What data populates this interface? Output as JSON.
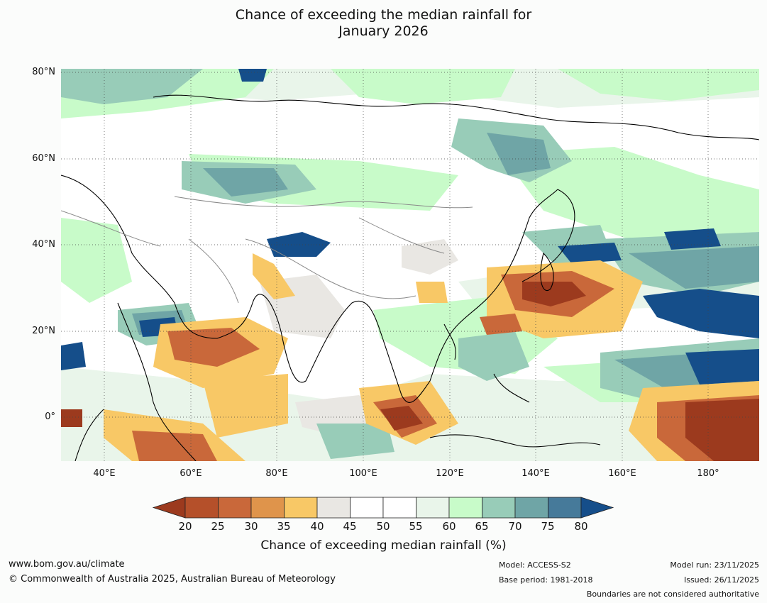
{
  "title": {
    "line1": "Chance of exceeding the median rainfall for",
    "line2": "January 2026"
  },
  "map": {
    "lat_labels": [
      "80°N",
      "60°N",
      "40°N",
      "20°N",
      "0°"
    ],
    "lon_labels": [
      "40°E",
      "60°E",
      "80°E",
      "100°E",
      "120°E",
      "140°E",
      "160°E",
      "180°"
    ]
  },
  "colorbar": {
    "ticks": [
      "20",
      "25",
      "30",
      "35",
      "40",
      "45",
      "50",
      "55",
      "60",
      "65",
      "70",
      "75",
      "80"
    ],
    "colors": [
      "#9c3a1e",
      "#b5502a",
      "#c9683a",
      "#df944b",
      "#f8c866",
      "#e9e7e3",
      "#ffffff",
      "#ffffff",
      "#e9f5ea",
      "#c8fbc9",
      "#98ccb8",
      "#6fa5a6",
      "#467a9a",
      "#154e8a"
    ],
    "label": "Chance of exceeding median rainfall (%)"
  },
  "footer": {
    "website": "www.bom.gov.au/climate",
    "copyright": "© Commonwealth of Australia 2025, Australian Bureau of Meteorology",
    "model": "Model: ACCESS-S2",
    "base_period": "Base period: 1981-2018",
    "model_run": "Model run: 23/11/2025",
    "issued": "Issued: 26/11/2025",
    "disclaimer": "Boundaries are not considered authoritative"
  }
}
